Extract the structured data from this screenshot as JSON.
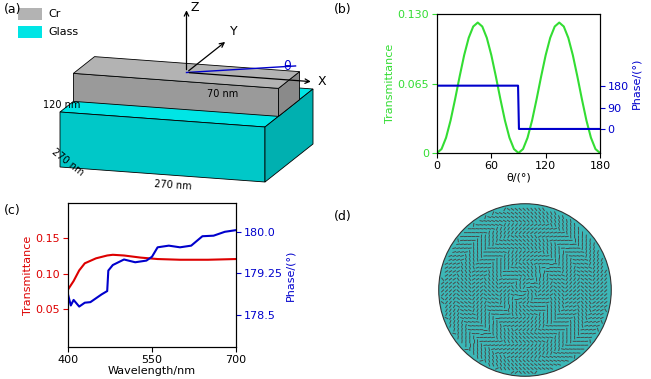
{
  "figure_labels": [
    "(a)",
    "(b)",
    "(c)",
    "(d)"
  ],
  "diagram": {
    "legend": [
      {
        "label": "Cr",
        "color": "#b3b3b3"
      },
      {
        "label": "Glass",
        "color": "#00e5e5"
      }
    ],
    "axes": [
      "X",
      "Y",
      "Z"
    ],
    "angle": "θ",
    "dimensions": {
      "height": "70 nm",
      "width": "120 nm",
      "depth": "270 nm",
      "length": "270 nm"
    }
  },
  "chart_data": [
    {
      "type": "line",
      "xlabel": "θ/(°)",
      "ylabel": "Transmittance",
      "y2label": "Phase/(°)",
      "xlim": [
        0,
        180
      ],
      "xticks": [
        0,
        60,
        120,
        180
      ],
      "ylim": [
        0,
        0.13
      ],
      "yticks": [
        0,
        0.065,
        {
          "value": 0.13,
          "label": "0.130"
        }
      ],
      "y2lim": [
        -98,
        480
      ],
      "y2ticks": [
        0,
        90,
        180
      ],
      "series": [
        {
          "color": "#33dd33",
          "x": [
            0,
            5,
            10,
            15,
            20,
            25,
            30,
            35,
            40,
            45,
            50,
            55,
            60,
            65,
            70,
            75,
            80,
            85,
            90,
            95,
            100,
            105,
            110,
            115,
            120,
            125,
            130,
            135,
            140,
            145,
            150,
            155,
            160,
            165,
            170,
            175,
            180
          ],
          "values": [
            0,
            0.0037,
            0.0143,
            0.0305,
            0.0504,
            0.0716,
            0.0915,
            0.1077,
            0.1183,
            0.122,
            0.1183,
            0.1077,
            0.0915,
            0.0716,
            0.0504,
            0.0305,
            0.0143,
            0.0037,
            0,
            0.0037,
            0.0143,
            0.0305,
            0.0504,
            0.0716,
            0.0915,
            0.1077,
            0.1183,
            0.122,
            0.1183,
            0.1077,
            0.0915,
            0.0716,
            0.0504,
            0.0305,
            0.0143,
            0.0037,
            0
          ]
        },
        {
          "color": "#0000cc",
          "axis": "y2",
          "x": [
            0,
            89.5,
            90.5,
            180
          ],
          "values": [
            182,
            182,
            2,
            2
          ]
        }
      ]
    },
    {
      "type": "line",
      "xlabel": "Wavelength/nm",
      "ylabel": "Transmittance",
      "y2label": "Phase/(°)",
      "xlim": [
        400,
        700
      ],
      "xticks": [
        400,
        550,
        700
      ],
      "ylim": [
        -0.003,
        0.2
      ],
      "yticks": [
        0.05,
        {
          "value": 0.1,
          "label": "0.10"
        },
        0.15
      ],
      "y2lim": [
        177.92,
        180.52
      ],
      "y2ticks": [
        {
          "value": 180,
          "label": "180.0"
        },
        179.25,
        178.5
      ],
      "series": [
        {
          "color": "#dd0000",
          "x": [
            400,
            410,
            420,
            430,
            450,
            470,
            480,
            500,
            530,
            560,
            600,
            650,
            700
          ],
          "values": [
            0.078,
            0.09,
            0.105,
            0.115,
            0.122,
            0.126,
            0.127,
            0.126,
            0.123,
            0.121,
            0.12,
            0.12,
            0.121
          ]
        },
        {
          "color": "#0000cc",
          "axis": "y2",
          "x": [
            400,
            405,
            410,
            420,
            430,
            440,
            450,
            460,
            465,
            470,
            472,
            480,
            500,
            520,
            540,
            550,
            560,
            580,
            600,
            620,
            640,
            660,
            680,
            700
          ],
          "values": [
            178.87,
            178.67,
            178.77,
            178.65,
            178.72,
            178.73,
            178.8,
            178.87,
            178.9,
            178.93,
            179.3,
            179.4,
            179.5,
            179.45,
            179.48,
            179.55,
            179.72,
            179.75,
            179.72,
            179.75,
            179.92,
            179.93,
            180.0,
            180.03
          ]
        }
      ]
    }
  ]
}
